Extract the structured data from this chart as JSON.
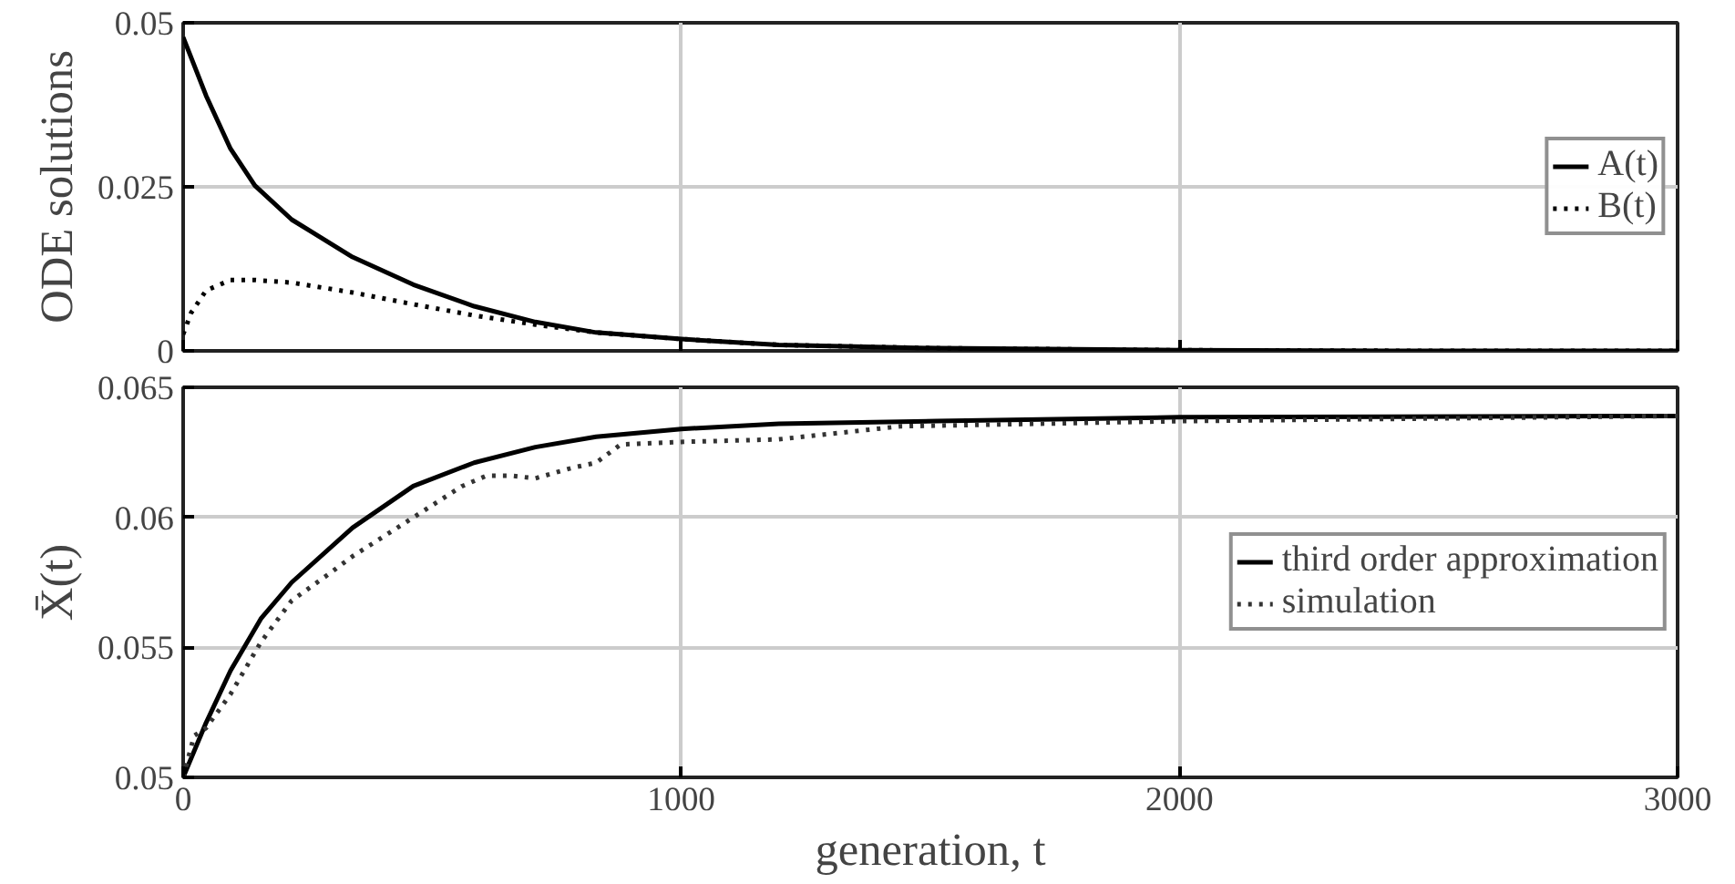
{
  "chart_data": [
    {
      "type": "line",
      "ylabel": "ODE solutions",
      "xlim": [
        0,
        3000
      ],
      "xticks": [
        0,
        1000,
        2000,
        3000
      ],
      "ylim": [
        0,
        0.05
      ],
      "yticks": [
        0,
        0.025,
        0.05
      ],
      "grid": true,
      "legend": "right",
      "tick_labels": "y",
      "x": [
        0,
        16,
        46,
        95,
        144,
        218,
        340,
        462,
        584,
        707,
        829,
        1000,
        1196,
        1513,
        2000,
        2500,
        3000
      ],
      "series": [
        {
          "name": "A(t)",
          "color": "#000000",
          "line_style": "solid",
          "values": [
            0.0478,
            0.0447,
            0.0389,
            0.0308,
            0.0252,
            0.02,
            0.0143,
            0.0101,
            0.0068,
            0.0044,
            0.0028,
            0.0018,
            0.0009,
            0.0004,
            0.0001,
            0.0,
            0.0
          ]
        },
        {
          "name": "B(t)",
          "color": "#000000",
          "line_style": "dotted",
          "values": [
            0.0025,
            0.0058,
            0.0092,
            0.0108,
            0.0108,
            0.0104,
            0.0089,
            0.0071,
            0.0054,
            0.004,
            0.0028,
            0.0018,
            0.0009,
            0.0004,
            0.0001,
            0.0,
            0.0
          ]
        }
      ]
    },
    {
      "type": "line",
      "xlabel": "generation, t",
      "ylabel": "X̄(t)",
      "xlim": [
        0,
        3000
      ],
      "xticks": [
        0,
        1000,
        2000,
        3000
      ],
      "ylim": [
        0.05,
        0.065
      ],
      "yticks": [
        0.05,
        0.055,
        0.06,
        0.065
      ],
      "grid": true,
      "legend": "right",
      "series": [
        {
          "name": "third order approximation",
          "color": "#000000",
          "line_style": "solid",
          "x": [
            0,
            46,
            95,
            156,
            218,
            340,
            462,
            584,
            707,
            829,
            1000,
            1196,
            1513,
            2000,
            3000
          ],
          "values": [
            0.05,
            0.0521,
            0.0541,
            0.0561,
            0.0575,
            0.0596,
            0.0612,
            0.0621,
            0.0627,
            0.0631,
            0.0634,
            0.0636,
            0.0637,
            0.06385,
            0.0639
          ]
        },
        {
          "name": "simulation",
          "color": "#333333",
          "line_style": "dotted",
          "x": [
            0,
            22,
            46,
            95,
            156,
            218,
            291,
            340,
            438,
            511,
            560,
            609,
            658,
            707,
            780,
            829,
            878,
            1000,
            1196,
            1440,
            2000,
            2500,
            3000
          ],
          "values": [
            0.05,
            0.0516,
            0.0519,
            0.0532,
            0.0552,
            0.0568,
            0.0578,
            0.0585,
            0.0597,
            0.0606,
            0.0612,
            0.0616,
            0.0616,
            0.0615,
            0.0619,
            0.0621,
            0.0628,
            0.0629,
            0.063,
            0.0635,
            0.0637,
            0.0638,
            0.0639
          ]
        }
      ]
    }
  ]
}
